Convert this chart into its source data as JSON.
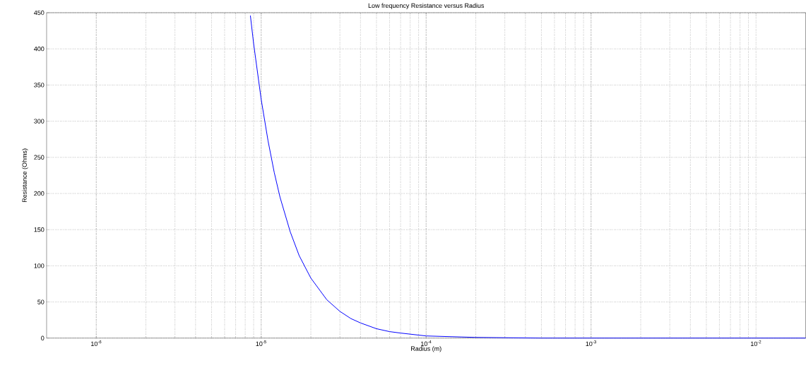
{
  "chart_data": {
    "type": "line",
    "title": "Low frequency Resistance versus Radius",
    "xlabel": "Radius (m)",
    "ylabel": "Resistance (Ohms)",
    "log": "x",
    "grid": true,
    "marker": "none",
    "line_style": "solid",
    "xlim": [
      5e-07,
      0.02
    ],
    "ylim": [
      0,
      450
    ],
    "xticks": [
      {
        "value": 1e-06,
        "label": "10$^{-6}$"
      },
      {
        "value": 1e-05,
        "label": "10$^{-5}$"
      },
      {
        "value": 0.0001,
        "label": "10$^{-4}$"
      },
      {
        "value": 0.001,
        "label": "10$^{-3}$"
      },
      {
        "value": 0.01,
        "label": "10$^{-2}$"
      }
    ],
    "yticks": [
      0,
      50,
      100,
      150,
      200,
      250,
      300,
      350,
      400,
      450
    ],
    "series": [
      {
        "color": "#0000ff",
        "x": [
          8.6e-06,
          9e-06,
          1e-05,
          1.1e-05,
          1.2e-05,
          1.3e-05,
          1.5e-05,
          1.7e-05,
          2e-05,
          2.5e-05,
          3e-05,
          3.5e-05,
          4e-05,
          5e-05,
          6e-05,
          7e-05,
          0.0001,
          0.0002,
          0.0005,
          0.001,
          0.01,
          0.02
        ],
        "values": [
          446,
          407,
          330,
          273,
          229,
          195,
          147,
          114,
          83,
          53,
          37,
          27,
          21,
          13,
          9,
          7,
          3,
          1,
          0,
          0,
          0,
          0
        ]
      }
    ]
  }
}
